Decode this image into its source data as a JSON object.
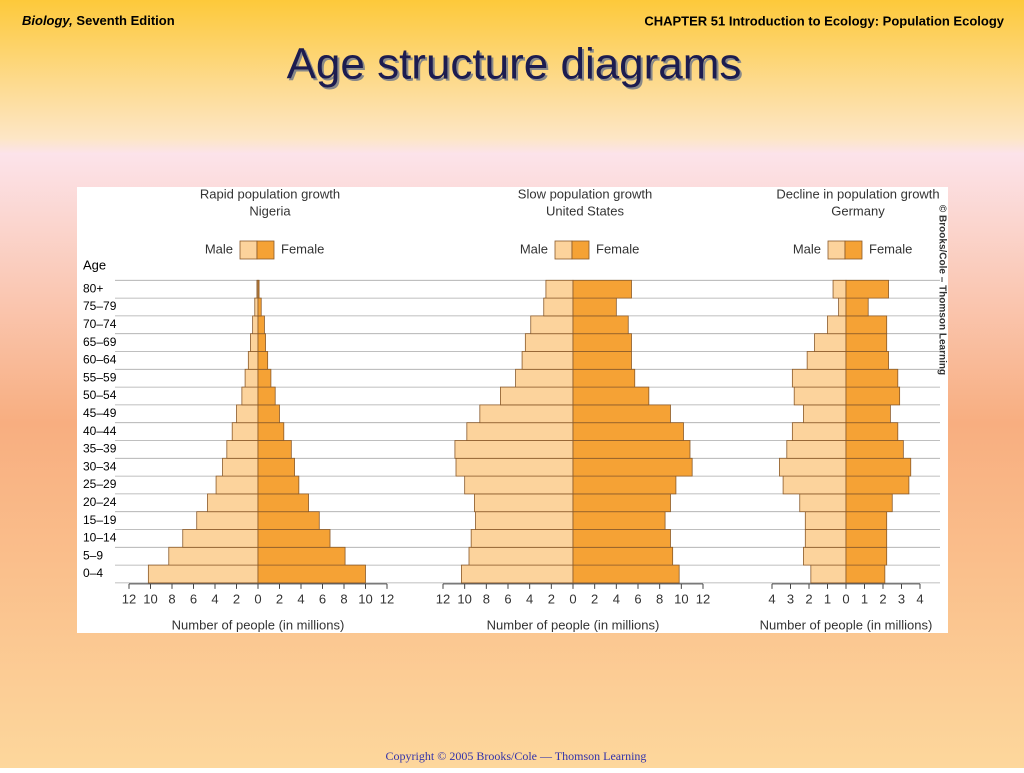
{
  "header": {
    "book": "Biology,",
    "edition": "Seventh Edition",
    "chapter": "CHAPTER 51 Introduction to Ecology: Population Ecology"
  },
  "title": "Age structure diagrams",
  "credit": "© Brooks/Cole – Thomson Learning",
  "copyright": "Copyright © 2005 Brooks/Cole — Thomson Learning",
  "chart_data": {
    "type": "pyramid",
    "y_label": "Age",
    "categories": [
      "0–4",
      "5–9",
      "10–14",
      "15–19",
      "20–24",
      "25–29",
      "30–34",
      "35–39",
      "40–44",
      "45–49",
      "50–54",
      "55–59",
      "60–64",
      "65–69",
      "70–74",
      "75–79",
      "80+"
    ],
    "panels": [
      {
        "title": "Rapid population growth",
        "subtitle": "Nigeria",
        "x_label": "Number of people (in millions)",
        "xlim": [
          0,
          12
        ],
        "xticks": [
          0,
          2,
          4,
          6,
          8,
          10,
          12
        ],
        "series": [
          {
            "name": "Male",
            "color": "#fcd39c",
            "values": [
              10.2,
              8.3,
              7.0,
              5.7,
              4.7,
              3.9,
              3.3,
              2.9,
              2.4,
              2.0,
              1.5,
              1.2,
              0.9,
              0.7,
              0.5,
              0.3,
              0.1
            ]
          },
          {
            "name": "Female",
            "color": "#f5a235",
            "values": [
              10.0,
              8.1,
              6.7,
              5.7,
              4.7,
              3.8,
              3.4,
              3.1,
              2.4,
              2.0,
              1.6,
              1.2,
              0.9,
              0.7,
              0.6,
              0.3,
              0.1
            ]
          }
        ]
      },
      {
        "title": "Slow population growth",
        "subtitle": "United States",
        "x_label": "Number of people (in millions)",
        "xlim": [
          0,
          12
        ],
        "xticks": [
          0,
          2,
          4,
          6,
          8,
          10,
          12
        ],
        "series": [
          {
            "name": "Male",
            "color": "#fcd39c",
            "values": [
              10.3,
              9.6,
              9.4,
              9.0,
              9.1,
              10.0,
              10.8,
              10.9,
              9.8,
              8.6,
              6.7,
              5.3,
              4.7,
              4.4,
              3.9,
              2.7,
              2.5
            ]
          },
          {
            "name": "Female",
            "color": "#f5a235",
            "values": [
              9.8,
              9.2,
              9.0,
              8.5,
              9.0,
              9.5,
              11.0,
              10.8,
              10.2,
              9.0,
              7.0,
              5.7,
              5.4,
              5.4,
              5.1,
              4.0,
              5.4
            ]
          }
        ]
      },
      {
        "title": "Decline in population growth",
        "subtitle": "Germany",
        "x_label": "Number of people (in millions)",
        "xlim": [
          0,
          4
        ],
        "xticks": [
          0,
          1,
          2,
          3,
          4
        ],
        "series": [
          {
            "name": "Male",
            "color": "#fcd39c",
            "values": [
              1.9,
              2.3,
              2.2,
              2.2,
              2.5,
              3.4,
              3.6,
              3.2,
              2.9,
              2.3,
              2.8,
              2.9,
              2.1,
              1.7,
              1.0,
              0.4,
              0.7
            ]
          },
          {
            "name": "Female",
            "color": "#f5a235",
            "values": [
              2.1,
              2.2,
              2.2,
              2.2,
              2.5,
              3.4,
              3.5,
              3.1,
              2.8,
              2.4,
              2.9,
              2.8,
              2.3,
              2.2,
              2.2,
              1.2,
              2.3
            ]
          }
        ]
      }
    ]
  }
}
